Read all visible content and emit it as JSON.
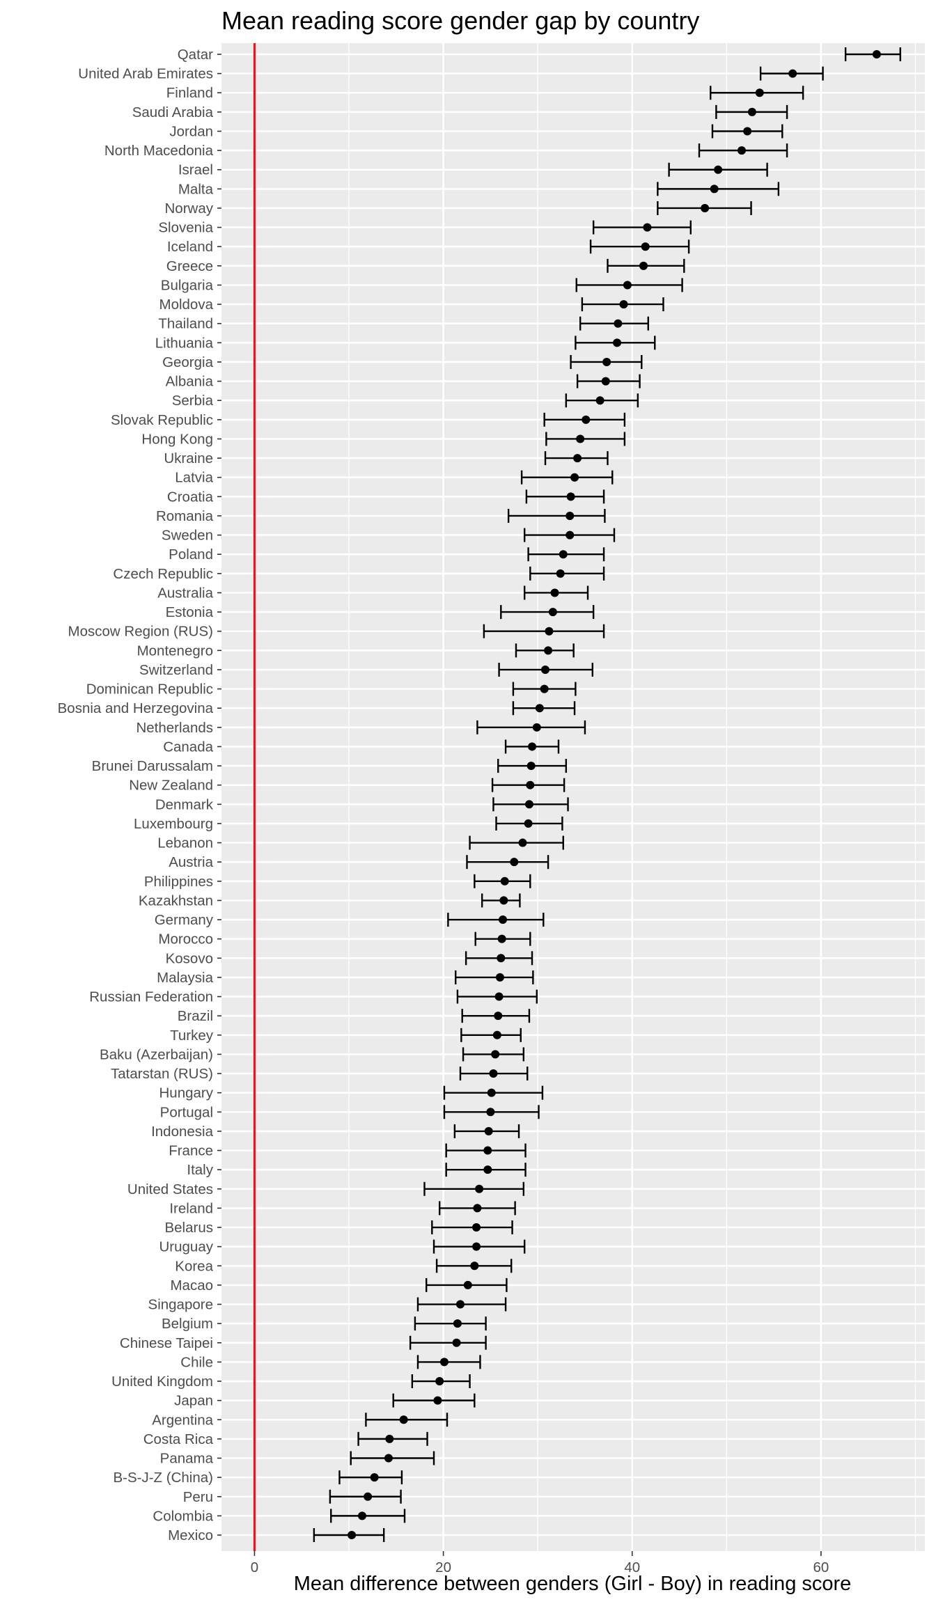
{
  "chart_data": {
    "type": "scatter",
    "subtype": "dot-with-error-bars",
    "title": "Mean reading score gender gap by country",
    "xlabel": "Mean difference between genders (Girl - Boy) in reading score",
    "ylabel": "",
    "xlim": [
      -3.5,
      71
    ],
    "xticks": [
      0,
      20,
      40,
      60
    ],
    "reference_line": {
      "x": 0,
      "color": "#e8141b"
    },
    "grid": true,
    "panel_background": "#ebebeb",
    "point_color": "#000000",
    "countries": [
      {
        "name": "Qatar",
        "mean": 65.9,
        "lo": 62.6,
        "hi": 68.4
      },
      {
        "name": "United Arab Emirates",
        "mean": 57.0,
        "lo": 53.6,
        "hi": 60.2
      },
      {
        "name": "Finland",
        "mean": 53.5,
        "lo": 48.3,
        "hi": 58.1
      },
      {
        "name": "Saudi Arabia",
        "mean": 52.7,
        "lo": 48.9,
        "hi": 56.4
      },
      {
        "name": "Jordan",
        "mean": 52.2,
        "lo": 48.5,
        "hi": 55.9
      },
      {
        "name": "North Macedonia",
        "mean": 51.6,
        "lo": 47.1,
        "hi": 56.4
      },
      {
        "name": "Israel",
        "mean": 49.1,
        "lo": 43.9,
        "hi": 54.3
      },
      {
        "name": "Malta",
        "mean": 48.7,
        "lo": 42.7,
        "hi": 55.5
      },
      {
        "name": "Norway",
        "mean": 47.7,
        "lo": 42.7,
        "hi": 52.6
      },
      {
        "name": "Slovenia",
        "mean": 41.6,
        "lo": 35.9,
        "hi": 46.2
      },
      {
        "name": "Iceland",
        "mean": 41.4,
        "lo": 35.6,
        "hi": 46.0
      },
      {
        "name": "Greece",
        "mean": 41.2,
        "lo": 37.4,
        "hi": 45.5
      },
      {
        "name": "Bulgaria",
        "mean": 39.5,
        "lo": 34.1,
        "hi": 45.3
      },
      {
        "name": "Moldova",
        "mean": 39.1,
        "lo": 34.7,
        "hi": 43.3
      },
      {
        "name": "Thailand",
        "mean": 38.5,
        "lo": 34.5,
        "hi": 41.7
      },
      {
        "name": "Lithuania",
        "mean": 38.4,
        "lo": 34.0,
        "hi": 42.4
      },
      {
        "name": "Georgia",
        "mean": 37.3,
        "lo": 33.5,
        "hi": 41.0
      },
      {
        "name": "Albania",
        "mean": 37.2,
        "lo": 34.2,
        "hi": 40.8
      },
      {
        "name": "Serbia",
        "mean": 36.6,
        "lo": 33.0,
        "hi": 40.6
      },
      {
        "name": "Slovak Republic",
        "mean": 35.1,
        "lo": 30.7,
        "hi": 39.2
      },
      {
        "name": "Hong Kong",
        "mean": 34.5,
        "lo": 30.9,
        "hi": 39.2
      },
      {
        "name": "Ukraine",
        "mean": 34.2,
        "lo": 30.8,
        "hi": 37.4
      },
      {
        "name": "Latvia",
        "mean": 33.9,
        "lo": 28.3,
        "hi": 37.9
      },
      {
        "name": "Croatia",
        "mean": 33.5,
        "lo": 28.8,
        "hi": 37.0
      },
      {
        "name": "Romania",
        "mean": 33.4,
        "lo": 26.9,
        "hi": 37.1
      },
      {
        "name": "Sweden",
        "mean": 33.4,
        "lo": 28.6,
        "hi": 38.1
      },
      {
        "name": "Poland",
        "mean": 32.7,
        "lo": 29.0,
        "hi": 37.0
      },
      {
        "name": "Czech Republic",
        "mean": 32.4,
        "lo": 29.2,
        "hi": 37.0
      },
      {
        "name": "Australia",
        "mean": 31.8,
        "lo": 28.6,
        "hi": 35.3
      },
      {
        "name": "Estonia",
        "mean": 31.6,
        "lo": 26.1,
        "hi": 35.9
      },
      {
        "name": "Moscow Region (RUS)",
        "mean": 31.2,
        "lo": 24.3,
        "hi": 37.0
      },
      {
        "name": "Montenegro",
        "mean": 31.1,
        "lo": 27.7,
        "hi": 33.8
      },
      {
        "name": "Switzerland",
        "mean": 30.8,
        "lo": 25.9,
        "hi": 35.8
      },
      {
        "name": "Dominican Republic",
        "mean": 30.7,
        "lo": 27.4,
        "hi": 34.0
      },
      {
        "name": "Bosnia and Herzegovina",
        "mean": 30.2,
        "lo": 27.4,
        "hi": 33.9
      },
      {
        "name": "Netherlands",
        "mean": 29.9,
        "lo": 23.6,
        "hi": 35.0
      },
      {
        "name": "Canada",
        "mean": 29.4,
        "lo": 26.6,
        "hi": 32.2
      },
      {
        "name": "Brunei Darussalam",
        "mean": 29.3,
        "lo": 25.8,
        "hi": 33.0
      },
      {
        "name": "New Zealand",
        "mean": 29.2,
        "lo": 25.2,
        "hi": 32.8
      },
      {
        "name": "Denmark",
        "mean": 29.1,
        "lo": 25.3,
        "hi": 33.2
      },
      {
        "name": "Luxembourg",
        "mean": 29.0,
        "lo": 25.6,
        "hi": 32.6
      },
      {
        "name": "Lebanon",
        "mean": 28.4,
        "lo": 22.8,
        "hi": 32.7
      },
      {
        "name": "Austria",
        "mean": 27.5,
        "lo": 22.5,
        "hi": 31.1
      },
      {
        "name": "Philippines",
        "mean": 26.5,
        "lo": 23.3,
        "hi": 29.2
      },
      {
        "name": "Kazakhstan",
        "mean": 26.4,
        "lo": 24.1,
        "hi": 28.1
      },
      {
        "name": "Germany",
        "mean": 26.3,
        "lo": 20.5,
        "hi": 30.6
      },
      {
        "name": "Morocco",
        "mean": 26.2,
        "lo": 23.4,
        "hi": 29.2
      },
      {
        "name": "Kosovo",
        "mean": 26.1,
        "lo": 22.4,
        "hi": 29.4
      },
      {
        "name": "Malaysia",
        "mean": 26.0,
        "lo": 21.3,
        "hi": 29.5
      },
      {
        "name": "Russian Federation",
        "mean": 25.9,
        "lo": 21.5,
        "hi": 29.9
      },
      {
        "name": "Brazil",
        "mean": 25.8,
        "lo": 22.0,
        "hi": 29.1
      },
      {
        "name": "Turkey",
        "mean": 25.7,
        "lo": 21.9,
        "hi": 28.2
      },
      {
        "name": "Baku (Azerbaijan)",
        "mean": 25.5,
        "lo": 22.1,
        "hi": 28.5
      },
      {
        "name": "Tatarstan (RUS)",
        "mean": 25.3,
        "lo": 21.8,
        "hi": 28.9
      },
      {
        "name": "Hungary",
        "mean": 25.1,
        "lo": 20.1,
        "hi": 30.5
      },
      {
        "name": "Portugal",
        "mean": 25.0,
        "lo": 20.1,
        "hi": 30.1
      },
      {
        "name": "Indonesia",
        "mean": 24.8,
        "lo": 21.2,
        "hi": 28.0
      },
      {
        "name": "France",
        "mean": 24.7,
        "lo": 20.3,
        "hi": 28.7
      },
      {
        "name": "Italy",
        "mean": 24.7,
        "lo": 20.3,
        "hi": 28.7
      },
      {
        "name": "United States",
        "mean": 23.8,
        "lo": 18.0,
        "hi": 28.5
      },
      {
        "name": "Ireland",
        "mean": 23.6,
        "lo": 19.6,
        "hi": 27.6
      },
      {
        "name": "Belarus",
        "mean": 23.5,
        "lo": 18.8,
        "hi": 27.3
      },
      {
        "name": "Uruguay",
        "mean": 23.5,
        "lo": 19.0,
        "hi": 28.6
      },
      {
        "name": "Korea",
        "mean": 23.3,
        "lo": 19.3,
        "hi": 27.2
      },
      {
        "name": "Macao",
        "mean": 22.6,
        "lo": 18.2,
        "hi": 26.7
      },
      {
        "name": "Singapore",
        "mean": 21.8,
        "lo": 17.3,
        "hi": 26.6
      },
      {
        "name": "Belgium",
        "mean": 21.5,
        "lo": 17.0,
        "hi": 24.5
      },
      {
        "name": "Chinese Taipei",
        "mean": 21.4,
        "lo": 16.5,
        "hi": 24.5
      },
      {
        "name": "Chile",
        "mean": 20.1,
        "lo": 17.3,
        "hi": 23.9
      },
      {
        "name": "United Kingdom",
        "mean": 19.6,
        "lo": 16.7,
        "hi": 22.8
      },
      {
        "name": "Japan",
        "mean": 19.4,
        "lo": 14.7,
        "hi": 23.3
      },
      {
        "name": "Argentina",
        "mean": 15.8,
        "lo": 11.8,
        "hi": 20.4
      },
      {
        "name": "Costa Rica",
        "mean": 14.3,
        "lo": 11.0,
        "hi": 18.3
      },
      {
        "name": "Panama",
        "mean": 14.2,
        "lo": 10.2,
        "hi": 19.0
      },
      {
        "name": "B-S-J-Z (China)",
        "mean": 12.7,
        "lo": 9.0,
        "hi": 15.6
      },
      {
        "name": "Peru",
        "mean": 12.0,
        "lo": 8.0,
        "hi": 15.5
      },
      {
        "name": "Colombia",
        "mean": 11.4,
        "lo": 8.1,
        "hi": 15.9
      },
      {
        "name": "Mexico",
        "mean": 10.3,
        "lo": 6.3,
        "hi": 13.7
      }
    ]
  }
}
